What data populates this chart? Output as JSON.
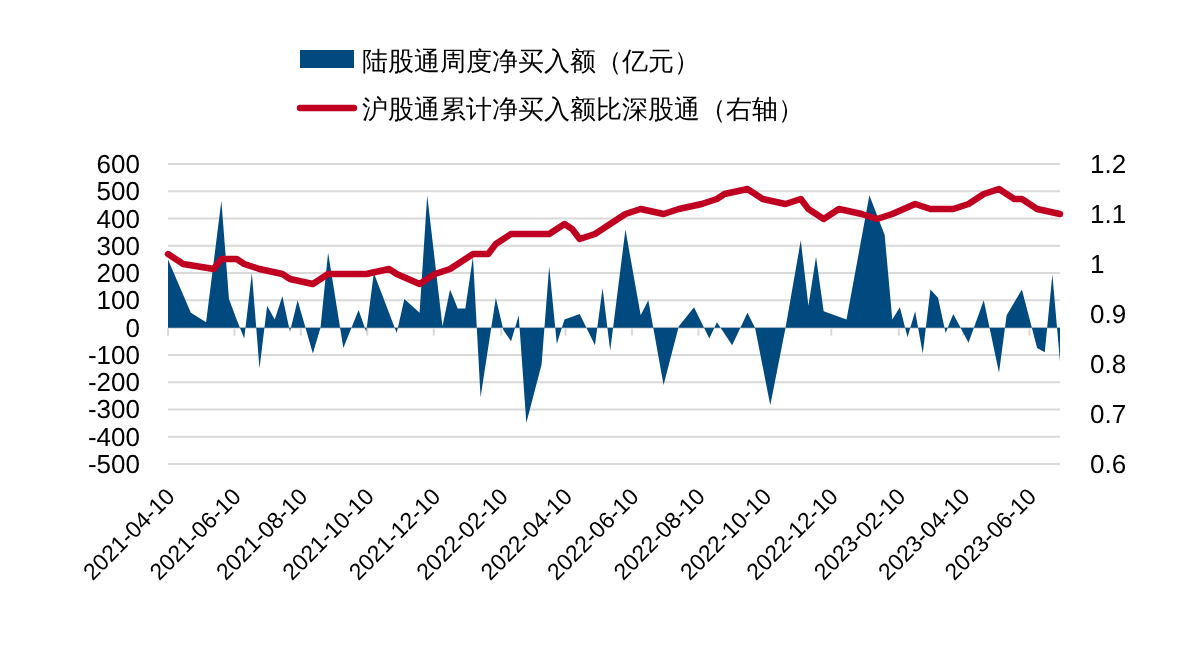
{
  "chart_data": {
    "type": "area",
    "series": [
      {
        "name": "陆股通周度净买入额（亿元）",
        "color": "#004a80",
        "x": [
          "2021-04-10",
          "2021-05-01",
          "2021-05-15",
          "2021-05-29",
          "2021-06-05",
          "2021-06-12",
          "2021-06-19",
          "2021-06-26",
          "2021-07-03",
          "2021-07-10",
          "2021-07-17",
          "2021-07-24",
          "2021-07-31",
          "2021-08-07",
          "2021-08-21",
          "2021-08-28",
          "2021-09-04",
          "2021-09-18",
          "2021-10-02",
          "2021-10-09",
          "2021-10-16",
          "2021-11-06",
          "2021-11-13",
          "2021-11-27",
          "2021-12-04",
          "2021-12-18",
          "2021-12-25",
          "2022-01-01",
          "2022-01-08",
          "2022-01-15",
          "2022-01-22",
          "2022-02-05",
          "2022-02-12",
          "2022-02-19",
          "2022-02-26",
          "2022-03-05",
          "2022-03-19",
          "2022-03-26",
          "2022-04-02",
          "2022-04-09",
          "2022-04-23",
          "2022-05-07",
          "2022-05-14",
          "2022-05-21",
          "2022-06-04",
          "2022-06-18",
          "2022-06-25",
          "2022-07-09",
          "2022-07-23",
          "2022-08-06",
          "2022-08-20",
          "2022-08-27",
          "2022-09-10",
          "2022-09-24",
          "2022-10-01",
          "2022-10-15",
          "2022-10-29",
          "2022-11-12",
          "2022-11-19",
          "2022-11-26",
          "2022-12-03",
          "2022-12-24",
          "2023-01-14",
          "2023-01-28",
          "2023-02-04",
          "2023-02-11",
          "2023-02-18",
          "2023-02-25",
          "2023-03-04",
          "2023-03-11",
          "2023-03-18",
          "2023-03-25",
          "2023-04-01",
          "2023-04-15",
          "2023-04-29",
          "2023-05-13",
          "2023-05-20",
          "2023-06-03",
          "2023-06-17",
          "2023-06-24",
          "2023-07-01",
          "2023-07-08"
        ],
        "values": [
          250,
          55,
          20,
          465,
          105,
          30,
          -40,
          200,
          -150,
          80,
          30,
          115,
          -15,
          100,
          -95,
          0,
          275,
          -75,
          65,
          -15,
          200,
          -20,
          105,
          55,
          485,
          5,
          140,
          70,
          70,
          260,
          -255,
          110,
          -10,
          -50,
          45,
          -350,
          -135,
          225,
          -60,
          30,
          50,
          -65,
          145,
          -85,
          360,
          45,
          100,
          -210,
          5,
          75,
          -40,
          20,
          -65,
          55,
          0,
          -285,
          0,
          320,
          80,
          260,
          60,
          30,
          485,
          340,
          30,
          75,
          -35,
          60,
          -95,
          140,
          110,
          -20,
          50,
          -55,
          100,
          -165,
          45,
          140,
          -75,
          -90,
          195,
          -125
        ]
      },
      {
        "name": "沪股通累计净买入额比深股通（右轴）",
        "type": "line",
        "axis": "y2",
        "color": "#c00020",
        "x": [
          "2021-04-10",
          "2021-04-24",
          "2021-05-22",
          "2021-05-29",
          "2021-06-12",
          "2021-06-19",
          "2021-07-03",
          "2021-07-24",
          "2021-07-31",
          "2021-08-21",
          "2021-09-04",
          "2021-09-18",
          "2021-10-09",
          "2021-10-30",
          "2021-11-06",
          "2021-11-27",
          "2021-12-11",
          "2021-12-25",
          "2022-01-15",
          "2022-01-29",
          "2022-02-05",
          "2022-02-19",
          "2022-03-05",
          "2022-03-26",
          "2022-04-09",
          "2022-04-16",
          "2022-04-23",
          "2022-05-07",
          "2022-05-14",
          "2022-05-21",
          "2022-06-04",
          "2022-06-18",
          "2022-07-09",
          "2022-07-23",
          "2022-08-13",
          "2022-08-27",
          "2022-09-03",
          "2022-09-24",
          "2022-10-08",
          "2022-10-29",
          "2022-11-12",
          "2022-11-19",
          "2022-12-03",
          "2022-12-17",
          "2023-01-07",
          "2023-01-21",
          "2023-02-04",
          "2023-02-25",
          "2023-03-11",
          "2023-04-01",
          "2023-04-15",
          "2023-04-29",
          "2023-05-13",
          "2023-05-27",
          "2023-06-03",
          "2023-06-10",
          "2023-06-17",
          "2023-07-08"
        ],
        "values": [
          1.02,
          1.0,
          0.99,
          1.01,
          1.01,
          1.0,
          0.99,
          0.98,
          0.97,
          0.96,
          0.98,
          0.98,
          0.98,
          0.99,
          0.98,
          0.96,
          0.98,
          0.99,
          1.02,
          1.02,
          1.04,
          1.06,
          1.06,
          1.06,
          1.08,
          1.07,
          1.05,
          1.06,
          1.07,
          1.08,
          1.1,
          1.11,
          1.1,
          1.11,
          1.12,
          1.13,
          1.14,
          1.15,
          1.13,
          1.12,
          1.13,
          1.11,
          1.09,
          1.11,
          1.1,
          1.09,
          1.1,
          1.12,
          1.11,
          1.11,
          1.12,
          1.14,
          1.15,
          1.13,
          1.13,
          1.12,
          1.11,
          1.1
        ]
      }
    ],
    "xlim": [
      "2021-04-10",
      "2023-07-08"
    ],
    "xticks": [
      "2021-04-10",
      "2021-06-10",
      "2021-08-10",
      "2021-10-10",
      "2021-12-10",
      "2022-02-10",
      "2022-04-10",
      "2022-06-10",
      "2022-08-10",
      "2022-10-10",
      "2022-12-10",
      "2023-02-10",
      "2023-04-10",
      "2023-06-10"
    ],
    "ylim": [
      -500,
      600
    ],
    "yticks": [
      -500,
      -400,
      -300,
      -200,
      -100,
      0,
      100,
      200,
      300,
      400,
      500,
      600
    ],
    "y2lim": [
      0.6,
      1.2
    ],
    "y2ticks": [
      0.6,
      0.7,
      0.8,
      0.9,
      1,
      1.1,
      1.2
    ],
    "grid": "y",
    "legend": "top"
  }
}
